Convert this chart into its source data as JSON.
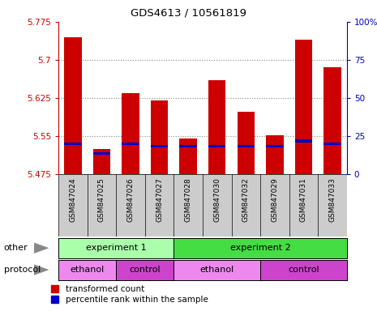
{
  "title": "GDS4613 / 10561819",
  "samples": [
    "GSM847024",
    "GSM847025",
    "GSM847026",
    "GSM847027",
    "GSM847028",
    "GSM847030",
    "GSM847032",
    "GSM847029",
    "GSM847031",
    "GSM847033"
  ],
  "y_min": 5.475,
  "y_max": 5.775,
  "y_ticks": [
    5.475,
    5.55,
    5.625,
    5.7,
    5.775
  ],
  "y_tick_labels": [
    "5.475",
    "5.55",
    "5.625",
    "5.7",
    "5.775"
  ],
  "right_y_ticks": [
    0,
    25,
    50,
    75,
    100
  ],
  "right_y_labels": [
    "0",
    "25",
    "50",
    "75",
    "100%"
  ],
  "bar_bottoms": [
    5.475,
    5.475,
    5.475,
    5.475,
    5.475,
    5.475,
    5.475,
    5.475,
    5.475,
    5.475
  ],
  "bar_tops": [
    5.745,
    5.525,
    5.635,
    5.62,
    5.545,
    5.66,
    5.598,
    5.552,
    5.74,
    5.685
  ],
  "blue_bottoms": [
    5.533,
    5.513,
    5.533,
    5.528,
    5.528,
    5.528,
    5.528,
    5.528,
    5.538,
    5.533
  ],
  "blue_tops": [
    5.538,
    5.518,
    5.538,
    5.533,
    5.533,
    5.533,
    5.533,
    5.533,
    5.543,
    5.538
  ],
  "bar_color": "#cc0000",
  "blue_color": "#0000cc",
  "left_axis_color": "#cc0000",
  "right_axis_color": "#0000bb",
  "grid_color": "#888888",
  "experiment1_label": "experiment 1",
  "experiment2_label": "experiment 2",
  "exp1_color": "#aaffaa",
  "exp2_color": "#44dd44",
  "ethanol_color": "#ee88ee",
  "control_color": "#cc44cc",
  "other_label": "other",
  "protocol_label": "protocol",
  "legend_items": [
    "transformed count",
    "percentile rank within the sample"
  ]
}
